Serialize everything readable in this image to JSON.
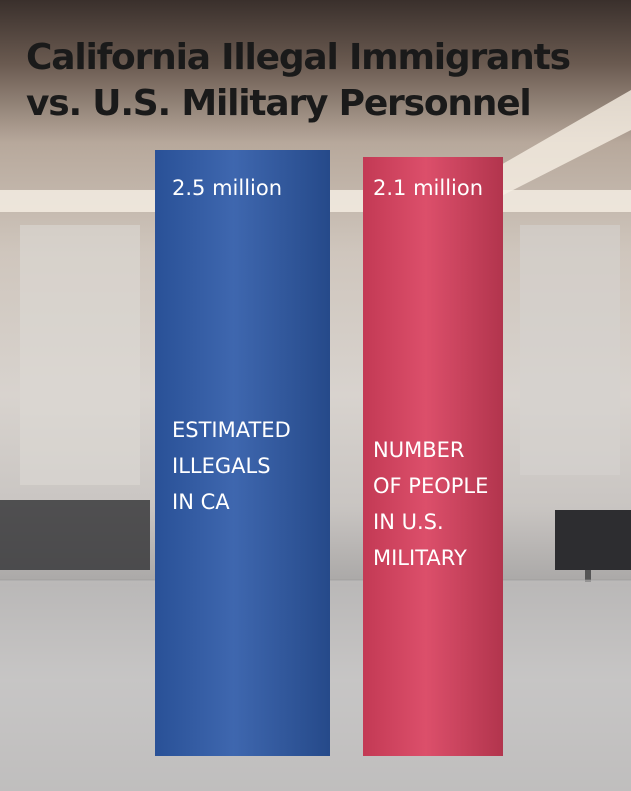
{
  "chart_data": {
    "type": "bar",
    "title_lines": [
      "California Illegal Immigrants",
      "vs. U.S. Military Personnel"
    ],
    "categories": [
      [
        "ESTIMATED",
        "ILLEGALS",
        "IN CA"
      ],
      [
        "NUMBER",
        "OF PEOPLE",
        "IN U.S.",
        "MILITARY"
      ]
    ],
    "values": [
      2.5,
      2.1
    ],
    "value_labels": [
      "2.5 million",
      "2.1 million"
    ],
    "colors": [
      "#2e5aa8",
      "#d9405e"
    ]
  }
}
